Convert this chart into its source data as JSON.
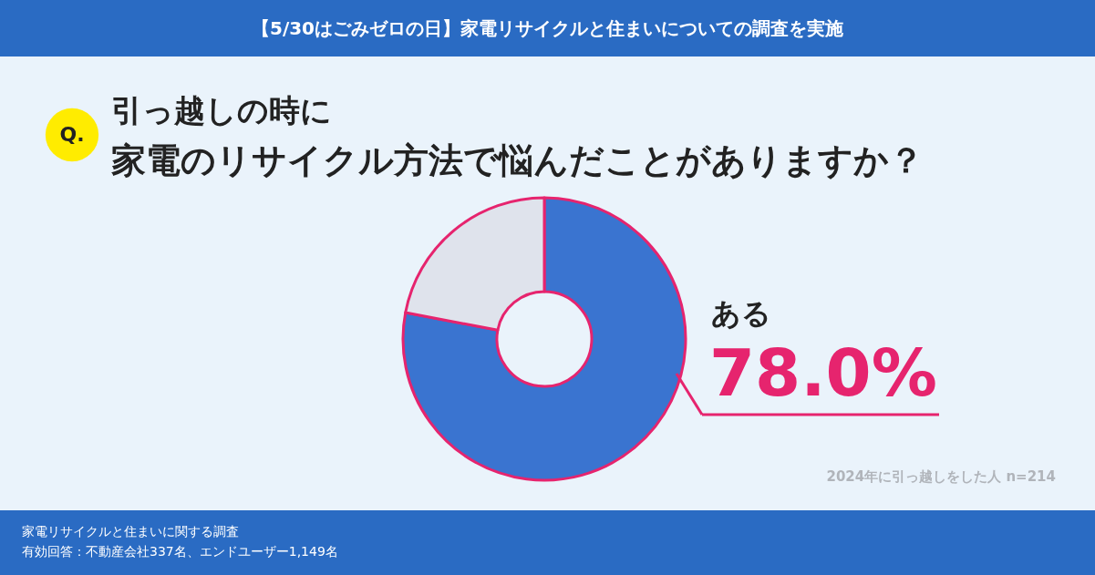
{
  "chart_data": {
    "type": "donut",
    "title": "引っ越しの時に",
    "subtitle": "家電のリサイクル方法で悩んだことがありますか？",
    "categories": [
      "ある",
      null
    ],
    "values": [
      78.0,
      22.0
    ],
    "value_labels": [
      "78.0%",
      null
    ],
    "colors": [
      "#3a74d0",
      "#dfe3ec"
    ],
    "legend": false,
    "annotations": [
      "【5/30はごみゼロの日】家電リサイクルと住まいについての調査を実施",
      "Q.",
      "2024年に引っ越しをした人  n=214",
      "家電リサイクルと住まいに関する調査",
      "有効回答：不動産会社337名、エンドユーザー1,149名"
    ]
  }
}
